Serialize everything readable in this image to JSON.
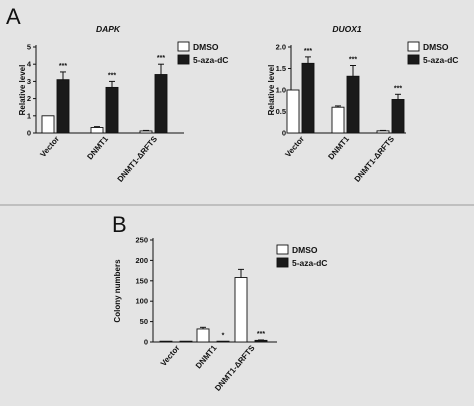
{
  "panels": {
    "A": "A",
    "B": "B"
  },
  "colors": {
    "dmso": "#ffffff",
    "aza": "#1a1a1a",
    "background": "#e4e4e4",
    "divider": "#9a9a9a"
  },
  "chart_data": [
    {
      "type": "bar",
      "panel": "A",
      "title": "DAPK",
      "ylabel": "Relative level",
      "ylim": [
        0,
        5
      ],
      "yticks": [
        0,
        1,
        2,
        3,
        4,
        5
      ],
      "categories": [
        "Vector",
        "DNMT1",
        "DNMT1-ΔRFTS"
      ],
      "legend": "top-right",
      "series": [
        {
          "name": "DMSO",
          "values": [
            1.0,
            0.32,
            0.12
          ],
          "errors": [
            0,
            0.05,
            0.03
          ],
          "color": "#ffffff"
        },
        {
          "name": "5-aza-dC",
          "values": [
            3.1,
            2.65,
            3.4
          ],
          "errors": [
            0.45,
            0.35,
            0.6
          ],
          "color": "#1a1a1a"
        }
      ],
      "annotations": [
        {
          "series": 1,
          "index": 0,
          "text": "***"
        },
        {
          "series": 1,
          "index": 1,
          "text": "***"
        },
        {
          "series": 1,
          "index": 2,
          "text": "***"
        }
      ]
    },
    {
      "type": "bar",
      "panel": "A",
      "title": "DUOX1",
      "ylabel": "Relative level",
      "ylim": [
        0,
        2.0
      ],
      "yticks": [
        0,
        0.5,
        1.0,
        1.5,
        2.0
      ],
      "ytick_labels": [
        "0",
        "0.5",
        "1.0",
        "1.5",
        "2.0"
      ],
      "categories": [
        "Vector",
        "DNMT1",
        "DNMT1-ΔRFTS"
      ],
      "legend": "top-right",
      "series": [
        {
          "name": "DMSO",
          "values": [
            1.0,
            0.6,
            0.05
          ],
          "errors": [
            0,
            0.03,
            0.01
          ],
          "color": "#ffffff"
        },
        {
          "name": "5-aza-dC",
          "values": [
            1.62,
            1.32,
            0.78
          ],
          "errors": [
            0.15,
            0.25,
            0.12
          ],
          "color": "#1a1a1a"
        }
      ],
      "annotations": [
        {
          "series": 1,
          "index": 0,
          "text": "***"
        },
        {
          "series": 1,
          "index": 1,
          "text": "***"
        },
        {
          "series": 1,
          "index": 2,
          "text": "***"
        }
      ]
    },
    {
      "type": "bar",
      "panel": "B",
      "title": "",
      "ylabel": "Colony numbers",
      "ylim": [
        0,
        250
      ],
      "yticks": [
        0,
        50,
        100,
        150,
        200,
        250
      ],
      "categories": [
        "Vector",
        "DNMT1",
        "DNMT1-ΔRFTS"
      ],
      "legend": "top-right",
      "series": [
        {
          "name": "DMSO",
          "values": [
            1,
            32,
            158
          ],
          "errors": [
            0,
            4,
            20
          ],
          "color": "#ffffff"
        },
        {
          "name": "5-aza-dC",
          "values": [
            1,
            1,
            4
          ],
          "errors": [
            0,
            0,
            1
          ],
          "color": "#1a1a1a"
        }
      ],
      "annotations": [
        {
          "series": 1,
          "index": 1,
          "text": "*"
        },
        {
          "series": 1,
          "index": 2,
          "text": "***"
        }
      ]
    }
  ]
}
